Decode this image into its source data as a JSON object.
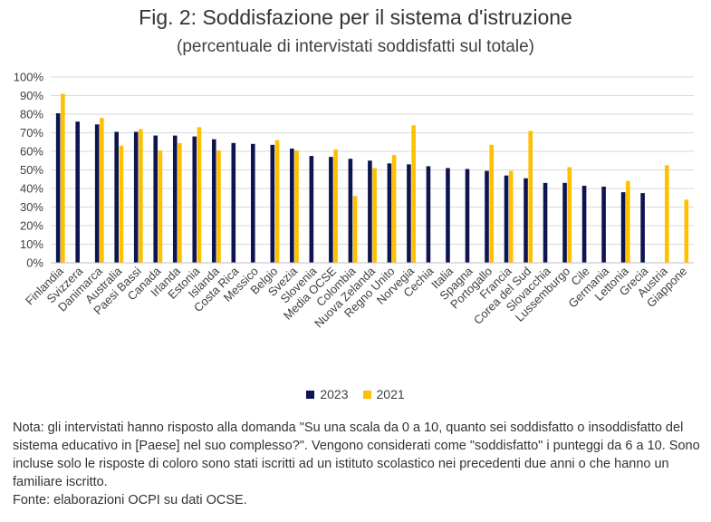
{
  "header": {
    "title": "Fig. 2: Soddisfazione per il sistema d'istruzione",
    "subtitle": "(percentuale di intervistati soddisfatti sul totale)"
  },
  "chart_data": {
    "type": "bar",
    "title": "Fig. 2: Soddisfazione per il sistema d'istruzione",
    "subtitle": "(percentuale di intervistati soddisfatti sul totale)",
    "y_ticks": [
      "0%",
      "10%",
      "20%",
      "30%",
      "40%",
      "50%",
      "60%",
      "70%",
      "80%",
      "90%",
      "100%"
    ],
    "ylim": [
      0,
      100
    ],
    "grid": true,
    "legend_position": "bottom",
    "categories": [
      "Finlandia",
      "Svizzera",
      "Danimarca",
      "Australia",
      "Paesi Bassi",
      "Canada",
      "Irlanda",
      "Estonia",
      "Islanda",
      "Costa Rica",
      "Messico",
      "Belgio",
      "Svezia",
      "Slovenia",
      "Media OCSE",
      "Colombia",
      "Nuova Zelanda",
      "Regno Unito",
      "Norvegia",
      "Cechia",
      "Italia",
      "Spagna",
      "Portogallo",
      "Francia",
      "Corea del Sud",
      "Slovacchia",
      "Lussemburgo",
      "Cile",
      "Germania",
      "Lettonia",
      "Grecia",
      "Austria",
      "Giappone"
    ],
    "series": [
      {
        "name": "2023",
        "color": "#0d1450",
        "values": [
          80.5,
          76,
          74.5,
          70.5,
          70.5,
          68.5,
          68.5,
          68,
          66.5,
          64.5,
          64,
          63.5,
          61.5,
          57.5,
          57,
          56,
          55,
          53.5,
          53,
          52,
          51,
          50.5,
          49.5,
          47,
          45.5,
          43,
          43,
          41.5,
          41,
          38,
          37.5,
          null,
          null
        ]
      },
      {
        "name": "2021",
        "color": "#ffc000",
        "values": [
          91,
          null,
          78,
          63,
          72,
          60.5,
          64.5,
          73,
          60.5,
          null,
          null,
          66,
          60.5,
          null,
          61,
          36,
          51,
          58,
          74,
          null,
          null,
          null,
          63.5,
          49.5,
          71,
          null,
          51.5,
          null,
          null,
          44,
          null,
          52.5,
          34
        ]
      }
    ]
  },
  "note": {
    "text": "Nota: gli intervistati hanno risposto alla domanda \"Su una scala da 0 a 10, quanto sei soddisfatto o insoddisfatto del sistema educativo in [Paese] nel suo complesso?\". Vengono considerati come \"soddisfatto\" i punteggi da 6 a 10. Sono incluse solo le risposte di coloro sono stati iscritti ad un istituto scolastico nei precedenti due anni o che hanno un familiare iscritto.",
    "source": "Fonte: elaborazioni OCPI su dati OCSE."
  }
}
